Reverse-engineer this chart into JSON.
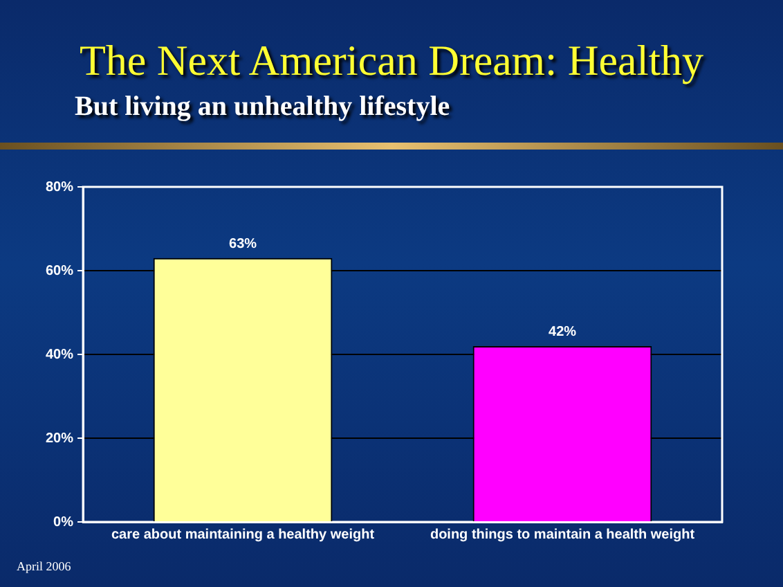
{
  "chart_data": {
    "type": "bar",
    "title": "The Next American Dream: Healthy",
    "subtitle": "But living an unhealthy lifestyle",
    "categories": [
      "care about maintaining a healthy weight",
      "doing things to maintain a health weight"
    ],
    "values": [
      63,
      42
    ],
    "value_labels": [
      "63%",
      "42%"
    ],
    "colors": [
      "#ffff99",
      "#ff00ff"
    ],
    "ylim": [
      0,
      80
    ],
    "yticks": [
      {
        "value": 0,
        "label": "0%"
      },
      {
        "value": 20,
        "label": "20%"
      },
      {
        "value": 40,
        "label": "40%"
      },
      {
        "value": 60,
        "label": "60%"
      },
      {
        "value": 80,
        "label": "80%"
      }
    ],
    "grid": "y",
    "legend": false,
    "annotations": [
      "April 2006"
    ]
  }
}
